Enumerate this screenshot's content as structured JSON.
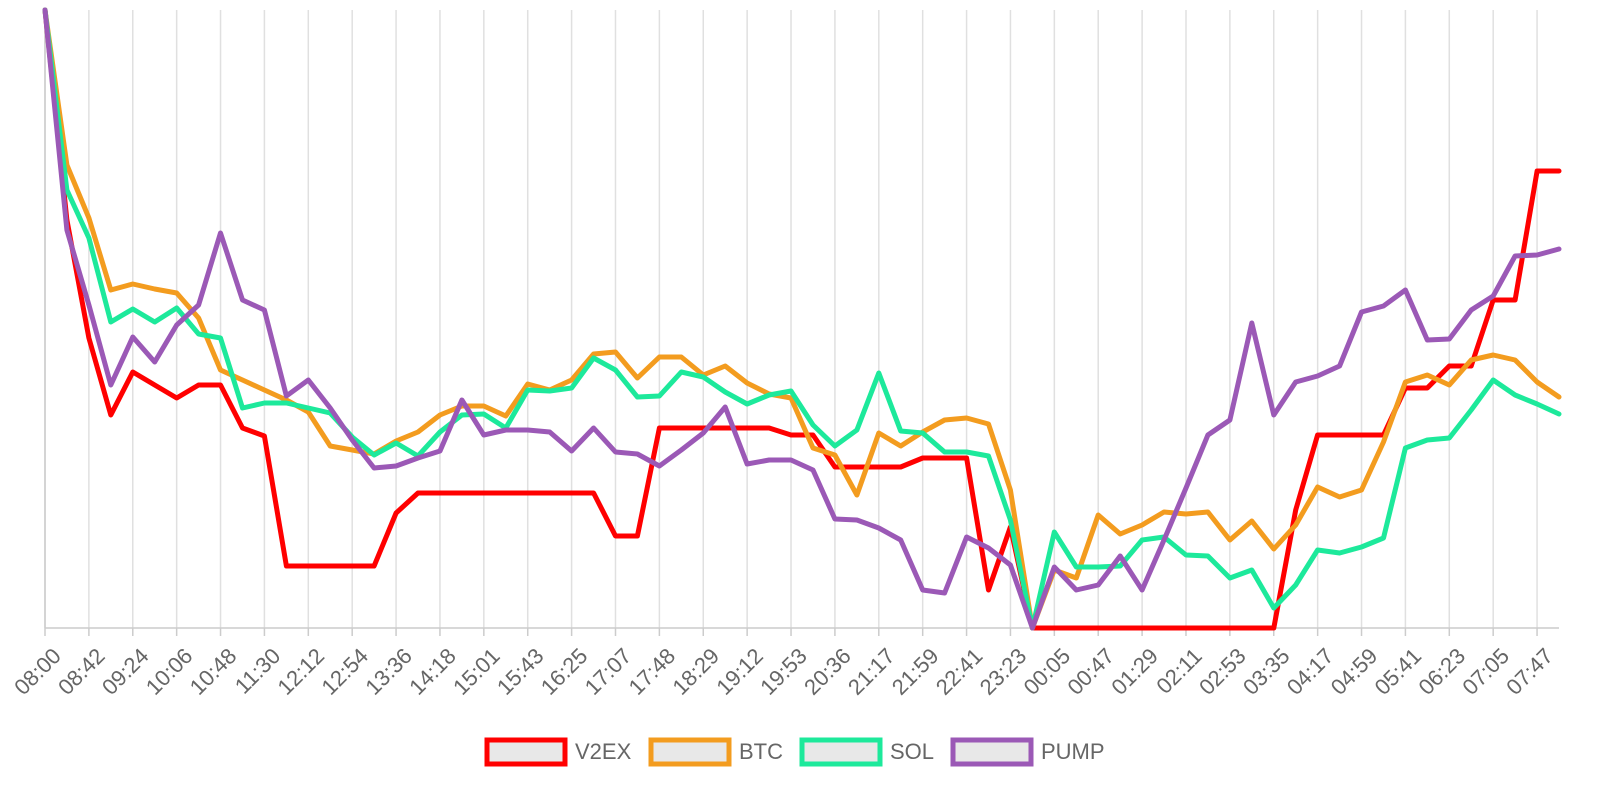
{
  "chart_data": {
    "type": "line",
    "categories": [
      "08:00",
      null,
      "08:42",
      null,
      "09:24",
      null,
      "10:06",
      null,
      "10:48",
      null,
      "11:30",
      null,
      "12:12",
      null,
      "12:54",
      null,
      "13:36",
      null,
      "14:18",
      null,
      "15:01",
      null,
      "15:43",
      null,
      "16:25",
      null,
      "17:07",
      null,
      "17:48",
      null,
      "18:29",
      null,
      "19:12",
      null,
      "19:53",
      null,
      "20:36",
      null,
      "21:17",
      null,
      "21:59",
      null,
      "22:41",
      null,
      "23:23",
      null,
      "00:05",
      null,
      "00:47",
      null,
      "01:29",
      null,
      "02:11",
      null,
      "02:53",
      null,
      "03:35",
      null,
      "04:17",
      null,
      "04:59",
      null,
      "05:41",
      null,
      "06:23",
      null,
      "07:05",
      null,
      "07:47",
      null
    ],
    "ylim": [
      0,
      618
    ],
    "grid": true,
    "legend": "bottom",
    "series": [
      {
        "name": "V2EX",
        "color": "#ff0000",
        "values": [
          618,
          408,
          290,
          213,
          256,
          243,
          230,
          243,
          243,
          200,
          192,
          62,
          62,
          62,
          62,
          62,
          115,
          135,
          135,
          135,
          135,
          135,
          135,
          135,
          135,
          135,
          92,
          92,
          200,
          200,
          200,
          200,
          200,
          200,
          193,
          193,
          161,
          161,
          161,
          161,
          170,
          170,
          170,
          38,
          101,
          0,
          0,
          0,
          0,
          0,
          0,
          0,
          0,
          0,
          0,
          0,
          0,
          118,
          193,
          193,
          193,
          193,
          240,
          240,
          262,
          262,
          328,
          328,
          457,
          457
        ]
      },
      {
        "name": "BTC",
        "color": "#f39c1f",
        "values": [
          618,
          463,
          410,
          338,
          344,
          339,
          335,
          310,
          258,
          248,
          238,
          228,
          216,
          182,
          178,
          174,
          187,
          196,
          213,
          222,
          222,
          212,
          244,
          238,
          248,
          274,
          276,
          250,
          271,
          271,
          253,
          262,
          245,
          234,
          230,
          180,
          173,
          133,
          195,
          182,
          196,
          208,
          210,
          204,
          138,
          0,
          58,
          50,
          113,
          94,
          103,
          116,
          114,
          116,
          88,
          107,
          79,
          103,
          141,
          131,
          138,
          186,
          246,
          253,
          243,
          268,
          273,
          268,
          246,
          231
        ]
      },
      {
        "name": "SOL",
        "color": "#1de99b",
        "values": [
          618,
          438,
          390,
          306,
          319,
          306,
          320,
          294,
          290,
          220,
          225,
          225,
          220,
          215,
          191,
          173,
          185,
          172,
          196,
          213,
          214,
          200,
          238,
          237,
          240,
          270,
          258,
          231,
          232,
          256,
          251,
          236,
          224,
          233,
          237,
          203,
          182,
          198,
          255,
          197,
          195,
          176,
          176,
          172,
          108,
          0,
          96,
          61,
          61,
          62,
          88,
          91,
          73,
          72,
          50,
          58,
          20,
          43,
          78,
          75,
          81,
          90,
          180,
          188,
          190,
          218,
          248,
          233,
          224,
          214
        ]
      },
      {
        "name": "PUMP",
        "color": "#9b59b6",
        "values": [
          618,
          398,
          323,
          243,
          291,
          266,
          303,
          323,
          395,
          328,
          318,
          232,
          248,
          220,
          188,
          160,
          162,
          170,
          177,
          228,
          193,
          198,
          198,
          196,
          177,
          200,
          176,
          174,
          162,
          178,
          195,
          221,
          164,
          168,
          168,
          158,
          109,
          108,
          100,
          88,
          38,
          35,
          91,
          80,
          63,
          0,
          61,
          38,
          43,
          72,
          38,
          88,
          140,
          193,
          208,
          305,
          213,
          246,
          252,
          262,
          316,
          322,
          338,
          288,
          289,
          318,
          332,
          372,
          373,
          379
        ]
      }
    ]
  }
}
